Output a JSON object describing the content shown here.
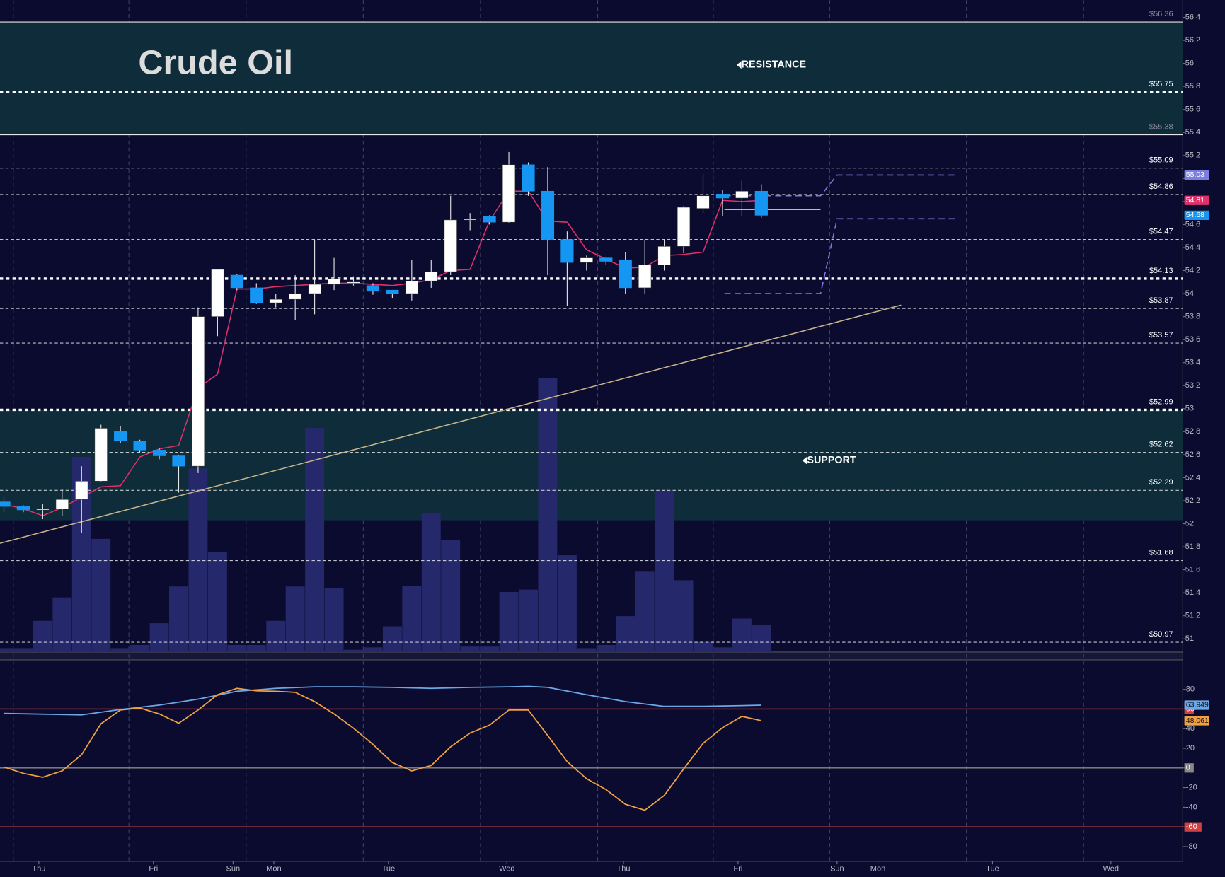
{
  "chart_data": [
    {
      "type": "candlestick",
      "title": "Crude Oil",
      "xlim": [
        -0.2,
        60.7
      ],
      "xticks": [
        {
          "value": 1.8,
          "label": "Thu"
        },
        {
          "value": 7.7,
          "label": "Fri"
        },
        {
          "value": 11.8,
          "label": "Sun"
        },
        {
          "value": 13.9,
          "label": "Mon"
        },
        {
          "value": 19.8,
          "label": "Tue"
        },
        {
          "value": 25.9,
          "label": "Wed"
        },
        {
          "value": 31.9,
          "label": "Thu"
        },
        {
          "value": 37.8,
          "label": "Fri"
        },
        {
          "value": 42.9,
          "label": "Sun"
        },
        {
          "value": 45,
          "label": "Mon"
        },
        {
          "value": 50.9,
          "label": "Tue"
        },
        {
          "value": 57,
          "label": "Wed"
        }
      ],
      "ylim": [
        50.885,
        56.55
      ],
      "yticks": [
        51,
        51.2,
        51.4,
        51.6,
        51.8,
        52,
        52.2,
        52.4,
        52.6,
        52.8,
        53,
        53.2,
        53.4,
        53.6,
        53.8,
        54,
        54.2,
        54.4,
        54.6,
        54.8,
        55,
        55.2,
        55.4,
        55.6,
        55.8,
        56,
        56.2,
        56.4
      ],
      "open": [
        52.19,
        52.15,
        52.12,
        52.13,
        52.21,
        52.37,
        52.8,
        52.72,
        52.64,
        52.59,
        52.5,
        53.8,
        54.16,
        54.05,
        53.92,
        53.95,
        54.0,
        54.08,
        54.1,
        54.07,
        54.03,
        54.0,
        54.11,
        54.19,
        54.64,
        54.67,
        54.62,
        55.12,
        54.89,
        54.47,
        54.27,
        54.31,
        54.29,
        54.05,
        54.25,
        54.41,
        54.74,
        54.86,
        54.83,
        54.89
      ],
      "high": [
        52.23,
        52.16,
        52.17,
        52.3,
        52.5,
        52.86,
        52.85,
        52.73,
        52.66,
        52.6,
        53.88,
        54.21,
        54.17,
        54.09,
        54.0,
        54.16,
        54.47,
        54.31,
        54.15,
        54.09,
        54.03,
        54.29,
        54.29,
        54.85,
        54.7,
        54.68,
        55.23,
        55.14,
        55.1,
        54.54,
        54.33,
        54.32,
        54.36,
        54.47,
        54.47,
        54.76,
        55.04,
        54.9,
        54.98,
        54.95
      ],
      "low": [
        52.1,
        52.1,
        52.04,
        52.07,
        51.92,
        52.36,
        52.7,
        52.62,
        52.56,
        52.27,
        52.44,
        53.63,
        54.03,
        53.91,
        53.88,
        53.77,
        53.82,
        54.03,
        54.07,
        53.99,
        53.96,
        53.94,
        54.05,
        54.16,
        54.55,
        54.6,
        54.61,
        54.85,
        54.16,
        53.89,
        54.2,
        54.25,
        54.0,
        54.0,
        54.2,
        54.35,
        54.7,
        54.67,
        54.67,
        54.66
      ],
      "close": [
        52.15,
        52.12,
        52.13,
        52.21,
        52.37,
        52.83,
        52.72,
        52.64,
        52.59,
        52.5,
        53.8,
        54.21,
        54.05,
        53.92,
        53.95,
        54.0,
        54.08,
        54.13,
        54.1,
        54.02,
        54.0,
        54.11,
        54.19,
        54.64,
        54.65,
        54.62,
        55.12,
        54.89,
        54.47,
        54.27,
        54.31,
        54.28,
        54.05,
        54.25,
        54.41,
        54.75,
        54.85,
        54.83,
        54.89,
        54.68
      ],
      "up_color": "#ffffff",
      "down_color": "#1596f2",
      "close_tag": true,
      "volume": [
        5,
        5,
        40,
        70,
        250,
        145,
        5,
        9,
        37,
        84,
        235,
        128,
        9,
        9,
        40,
        84,
        287,
        82,
        3,
        6,
        33,
        85,
        178,
        144,
        7,
        7,
        77,
        80,
        351,
        124,
        5,
        9,
        46,
        103,
        207,
        92,
        13,
        6,
        43,
        35
      ],
      "vlim": [
        0,
        835
      ],
      "volume_color": "#25286a",
      "zones": [
        {
          "name": "RESISTANCE",
          "range": [
            55.38,
            56.36
          ]
        },
        {
          "name": "SUPPORT",
          "range": [
            52.03,
            52.99
          ]
        }
      ],
      "levels": [
        {
          "value": 56.36,
          "label": "$56.36",
          "style": "solid"
        },
        {
          "value": 55.75,
          "label": "$55.75",
          "style": "bold"
        },
        {
          "value": 55.38,
          "label": "$55.38",
          "style": "solid"
        },
        {
          "value": 55.09,
          "label": "$55.09",
          "style": "thin"
        },
        {
          "value": 54.86,
          "label": "$54.86",
          "style": "thin"
        },
        {
          "value": 54.47,
          "label": "$54.47",
          "style": "thin"
        },
        {
          "value": 54.13,
          "label": "$54.13",
          "style": "bold"
        },
        {
          "value": 53.87,
          "label": "$53.87",
          "style": "thin"
        },
        {
          "value": 53.57,
          "label": "$53.57",
          "style": "thin"
        },
        {
          "value": 52.99,
          "label": "$52.99",
          "style": "bold"
        },
        {
          "value": 52.62,
          "label": "$52.62",
          "style": "thin"
        },
        {
          "value": 52.29,
          "label": "$52.29",
          "style": "thin"
        },
        {
          "value": 51.68,
          "label": "$51.68",
          "style": "thin"
        },
        {
          "value": 50.97,
          "label": "$50.97",
          "style": "thin"
        }
      ],
      "series": [
        {
          "color": "#e0306a",
          "tag": true,
          "values": [
            52.17,
            52.13,
            52.07,
            52.14,
            52.23,
            52.32,
            52.33,
            52.58,
            52.65,
            52.68,
            53.18,
            53.3,
            54.04,
            54.04,
            54.06,
            54.07,
            54.08,
            54.09,
            54.09,
            54.08,
            54.07,
            54.09,
            54.12,
            54.2,
            54.21,
            54.63,
            54.89,
            54.89,
            54.63,
            54.62,
            54.38,
            54.3,
            54.22,
            54.23,
            54.33,
            54.34,
            54.36,
            54.81,
            54.8,
            54.81
          ]
        },
        {
          "color": "#7a7ee0",
          "style": "dashed",
          "tag": true,
          "x": [
            37.1,
            42.05,
            42.9,
            49.1
          ],
          "values": [
            54.85,
            54.85,
            55.03,
            55.03
          ]
        },
        {
          "color": "#7a7ee0",
          "style": "dashed",
          "x": [
            37.1,
            42.05,
            42.9,
            49.1
          ],
          "values": [
            54.0,
            54.0,
            54.65,
            54.65
          ]
        },
        {
          "color": "#7fe0a0",
          "x": [
            37.1,
            42.05
          ],
          "values": [
            54.73,
            54.73
          ]
        },
        {
          "color": "#c8b48a",
          "x": [
            -0.2,
            46.2
          ],
          "values": [
            51.83,
            53.9
          ]
        }
      ]
    },
    {
      "type": "line",
      "ylim": [
        -95,
        110
      ],
      "yticks": [
        80,
        60,
        40,
        20,
        0,
        -20,
        -40,
        -60,
        -80
      ],
      "hlines": [
        {
          "value": 60,
          "color": "#d04040"
        },
        {
          "value": 0,
          "color": "#888888"
        },
        {
          "value": -60,
          "color": "#d04040"
        }
      ],
      "series": [
        {
          "color": "#6aa8e8",
          "tag": true,
          "x": [
            0,
            4,
            6,
            8,
            10,
            11,
            12,
            14,
            16,
            18,
            20,
            22,
            24,
            26,
            27,
            28,
            30,
            32,
            34,
            36,
            38,
            39
          ],
          "values": [
            55.5,
            54,
            59.5,
            64,
            70,
            74,
            78,
            81,
            82.5,
            82.5,
            82,
            81,
            82,
            82.5,
            83,
            82,
            74.5,
            67.5,
            62.7,
            62.7,
            63.5,
            63.9493
          ]
        },
        {
          "color": "#f0a040",
          "tag": true,
          "values": [
            1,
            -5.5,
            -9.5,
            -3,
            13.5,
            45,
            59,
            61,
            55,
            45.5,
            59,
            74.5,
            81,
            78.5,
            78,
            77,
            67.5,
            55,
            40.5,
            24,
            5.5,
            -3,
            2.5,
            21.5,
            35.5,
            43.5,
            59,
            59,
            33,
            6.5,
            -11,
            -22,
            -37,
            -43,
            -28,
            -1,
            25,
            41,
            52.5,
            48.061
          ]
        }
      ]
    }
  ]
}
